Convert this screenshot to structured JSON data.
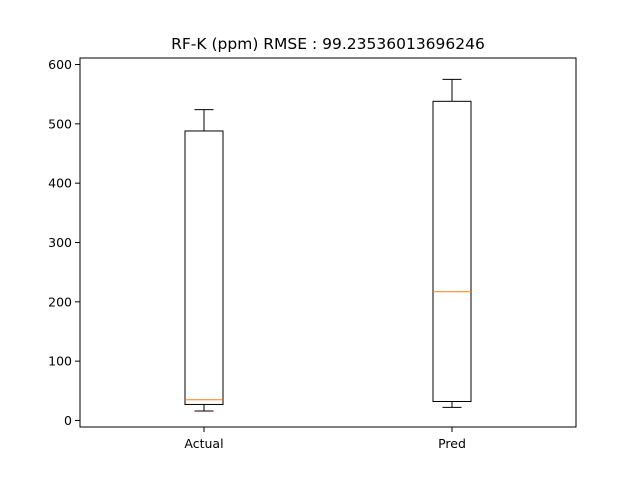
{
  "chart_data": {
    "type": "boxplot",
    "title": "RF-K (ppm) RMSE : 99.23536013696246",
    "xlabel": "",
    "ylabel": "",
    "ylim": [
      -11,
      611
    ],
    "y_ticks": [
      0,
      100,
      200,
      300,
      400,
      500,
      600
    ],
    "categories": [
      "Actual",
      "Pred"
    ],
    "boxes": [
      {
        "label": "Actual",
        "whisker_low": 16,
        "q1": 27,
        "median": 35,
        "q3": 488,
        "whisker_high": 524
      },
      {
        "label": "Pred",
        "whisker_low": 22,
        "q1": 32,
        "median": 217,
        "q3": 538,
        "whisker_high": 575
      }
    ],
    "grid": false,
    "colors": {
      "box": "#000000",
      "median": "#ff7f0e",
      "axes": "#000000"
    }
  }
}
